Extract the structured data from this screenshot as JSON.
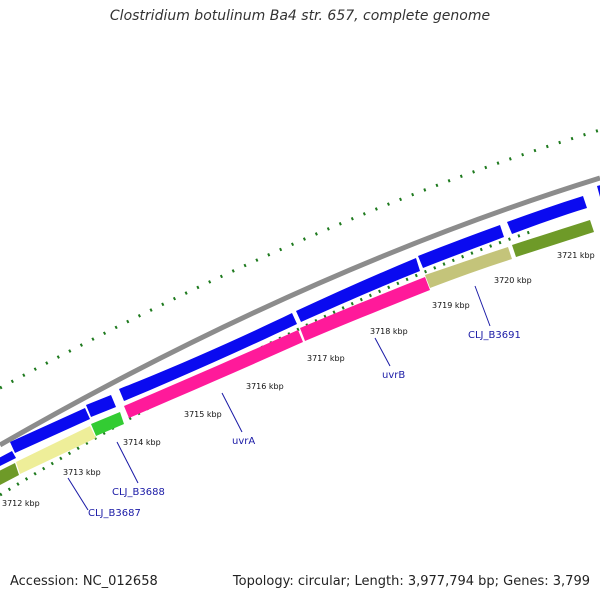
{
  "title": "Clostridium botulinum Ba4 str. 657, complete genome",
  "accession": "Accession: NC_012658",
  "summary": "Topology: circular; Length: 3,977,794 bp; Genes: 3,799",
  "ticks": [
    "3712 kbp",
    "3713 kbp",
    "3714 kbp",
    "3715 kbp",
    "3716 kbp",
    "3717 kbp",
    "3718 kbp",
    "3719 kbp",
    "3720 kbp",
    "3721 kbp"
  ],
  "gene_labels": [
    "CLJ_B3687",
    "CLJ_B3688",
    "uvrA",
    "uvrB",
    "CLJ_B3691"
  ],
  "colors": {
    "backbone": "#8c8c8c",
    "cds": "#0a0af0",
    "gc_skew": "#1e7a1e",
    "uvr": "#ff1a9a",
    "khaki": "#c4c47a",
    "pale_yellow": "#eeee99",
    "olive": "#6e9a28",
    "bright_green": "#33cc33",
    "label": "#1a1aa6"
  }
}
